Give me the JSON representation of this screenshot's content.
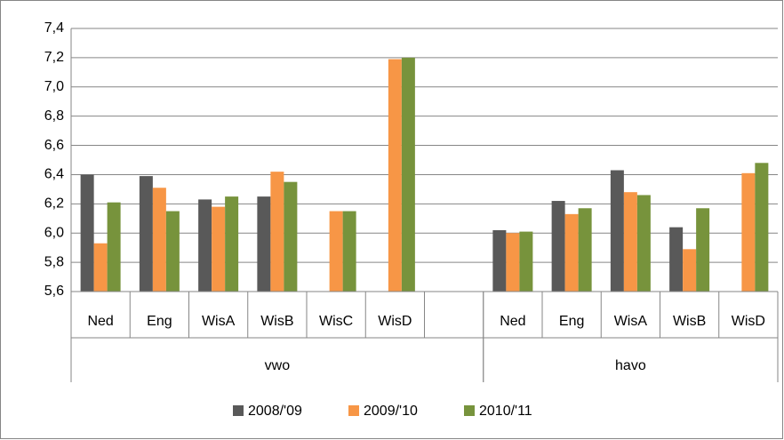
{
  "chart_data": {
    "type": "bar",
    "groups": [
      {
        "name": "vwo",
        "categories": [
          "Ned",
          "Eng",
          "WisA",
          "WisB",
          "WisC",
          "WisD",
          null
        ]
      },
      {
        "name": "havo",
        "categories": [
          "Ned",
          "Eng",
          "WisA",
          "WisB",
          "WisD"
        ]
      }
    ],
    "series": [
      {
        "name": "2008/'09",
        "color": "#595959",
        "values": [
          6.4,
          6.39,
          6.23,
          6.25,
          null,
          null,
          null,
          6.02,
          6.22,
          6.43,
          6.04,
          null
        ]
      },
      {
        "name": "2009/'10",
        "color": "#f79646",
        "values": [
          5.93,
          6.31,
          6.18,
          6.42,
          6.15,
          7.19,
          null,
          6.0,
          6.13,
          6.28,
          5.89,
          6.41
        ]
      },
      {
        "name": "2010/'11",
        "color": "#77933c",
        "values": [
          6.21,
          6.15,
          6.25,
          6.35,
          6.15,
          7.2,
          null,
          6.01,
          6.17,
          6.26,
          6.17,
          6.48
        ]
      }
    ],
    "ylim": [
      5.6,
      7.4
    ],
    "yticks": [
      {
        "value": 5.6,
        "label": "5,6"
      },
      {
        "value": 5.8,
        "label": "5,8"
      },
      {
        "value": 6.0,
        "label": "6,0"
      },
      {
        "value": 6.2,
        "label": "6,2"
      },
      {
        "value": 6.4,
        "label": "6,4"
      },
      {
        "value": 6.6,
        "label": "6,6"
      },
      {
        "value": 6.8,
        "label": "6,8"
      },
      {
        "value": 7.0,
        "label": "7,0"
      },
      {
        "value": 7.2,
        "label": "7,2"
      },
      {
        "value": 7.4,
        "label": "7,4"
      }
    ],
    "grid": true,
    "legend": "bottom"
  }
}
